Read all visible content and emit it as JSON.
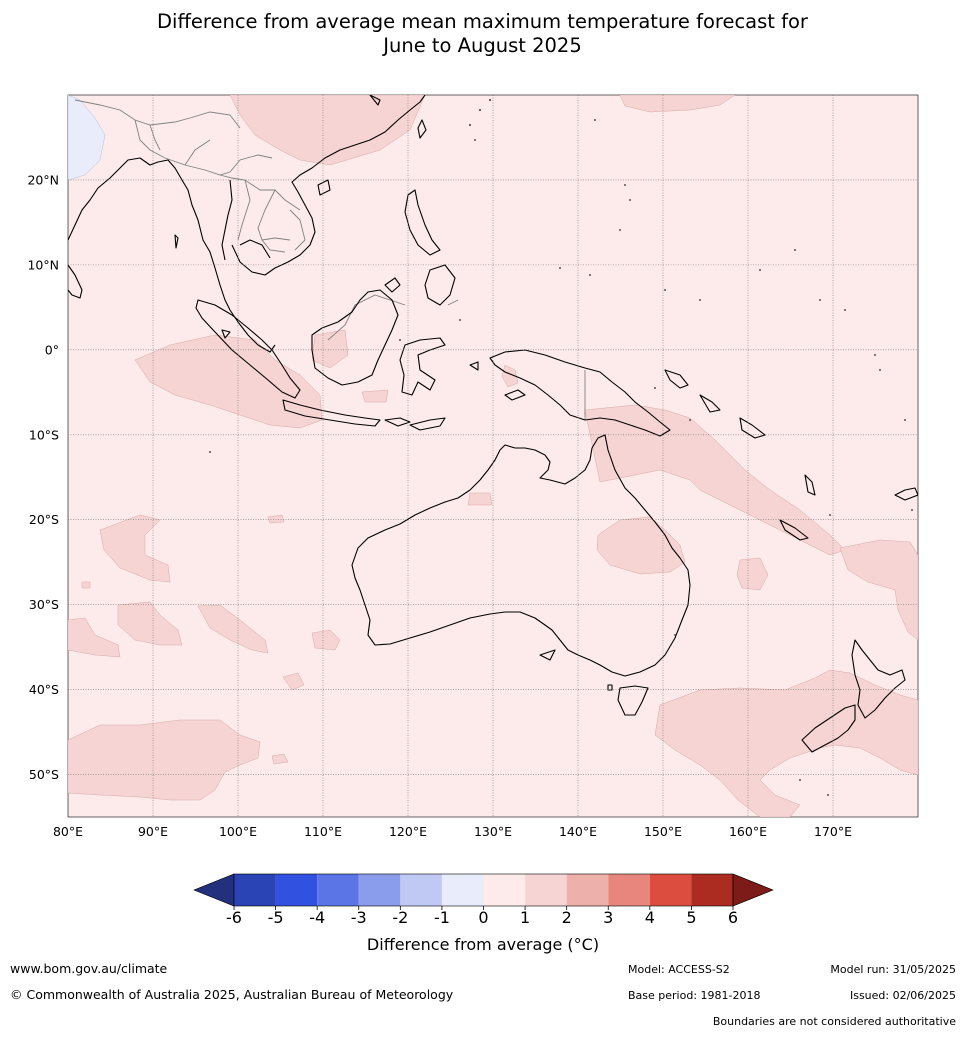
{
  "title_line1": "Difference from average mean maximum temperature forecast for",
  "title_line2": "June to August 2025",
  "map": {
    "lon_range": [
      80,
      180
    ],
    "lat_range": [
      -55,
      30
    ],
    "lon_ticks": [
      {
        "value": 80,
        "label": "80°E"
      },
      {
        "value": 90,
        "label": "90°E"
      },
      {
        "value": 100,
        "label": "100°E"
      },
      {
        "value": 110,
        "label": "110°E"
      },
      {
        "value": 120,
        "label": "120°E"
      },
      {
        "value": 130,
        "label": "130°E"
      },
      {
        "value": 140,
        "label": "140°E"
      },
      {
        "value": 150,
        "label": "150°E"
      },
      {
        "value": 160,
        "label": "160°E"
      },
      {
        "value": 170,
        "label": "170°E"
      }
    ],
    "lat_ticks": [
      {
        "value": 20,
        "label": "20°N"
      },
      {
        "value": 10,
        "label": "10°N"
      },
      {
        "value": 0,
        "label": "0°"
      },
      {
        "value": -10,
        "label": "10°S"
      },
      {
        "value": -20,
        "label": "20°S"
      },
      {
        "value": -30,
        "label": "30°S"
      },
      {
        "value": -40,
        "label": "40°S"
      },
      {
        "value": -50,
        "label": "50°S"
      }
    ],
    "background_category": "0 to 1",
    "colors": {
      "bg_0_1": "#fcebea",
      "anom_1_2": "#f5d4d3",
      "anom_neg1_0": "#e8ecfb",
      "coast": "#000000",
      "border": "#808080",
      "grid": "#777777"
    }
  },
  "colorbar": {
    "ticks": [
      "-6",
      "-5",
      "-4",
      "-3",
      "-2",
      "-1",
      "0",
      "1",
      "2",
      "3",
      "4",
      "5",
      "6"
    ],
    "colors": [
      "#23307e",
      "#2a43b5",
      "#3151e0",
      "#5b74e6",
      "#8a9cec",
      "#c0c8f4",
      "#e8ecfb",
      "#fcebea",
      "#f5d4d3",
      "#eeb0aa",
      "#e8867d",
      "#dc4c3f",
      "#ad2c22",
      "#7c1b17"
    ],
    "label": "Difference from average (°C)"
  },
  "footer": {
    "website": "www.bom.gov.au/climate",
    "copyright": "© Commonwealth of Australia 2025, Australian Bureau of Meteorology",
    "model": "Model: ACCESS-S2",
    "base_period": "Base period: 1981-2018",
    "model_run": "Model run: 31/05/2025",
    "issued": "Issued: 02/06/2025",
    "disclaimer": "Boundaries are not considered authoritative"
  }
}
